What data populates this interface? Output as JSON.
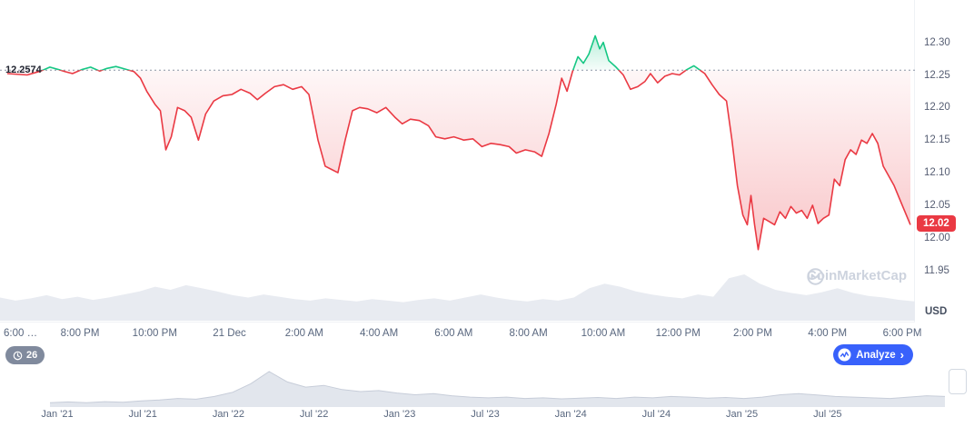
{
  "price_chart": {
    "baseline_label": "12.2574",
    "last_price_label": "12.02",
    "unit": "USD",
    "watermark": "CoinMarketCap"
  },
  "toolbar": {
    "history_count": "26",
    "analyze_label": "Analyze",
    "analyze_chevron": "›"
  },
  "colors": {
    "up": "#16c784",
    "down": "#ea3943",
    "accent_blue": "#3861fb",
    "pill_gray": "#808a9d"
  },
  "chart_data": {
    "type": "line",
    "title": "",
    "unit": "USD",
    "baseline": 12.2574,
    "last_price": 12.02,
    "ylim": [
      11.87,
      12.365
    ],
    "y_ticks": [
      12.3,
      12.25,
      12.2,
      12.15,
      12.1,
      12.05,
      12.0,
      11.95
    ],
    "x_tick_labels": [
      "6:00 …",
      "8:00 PM",
      "10:00 PM",
      "21 Dec",
      "2:00 AM",
      "4:00 AM",
      "6:00 AM",
      "8:00 AM",
      "10:00 AM",
      "12:00 PM",
      "2:00 PM",
      "4:00 PM",
      "6:00 PM"
    ],
    "series": [
      {
        "name": "price",
        "points": [
          [
            0.0,
            12.252
          ],
          [
            0.022,
            12.25
          ],
          [
            0.037,
            12.256
          ],
          [
            0.047,
            12.262
          ],
          [
            0.057,
            12.258
          ],
          [
            0.064,
            12.255
          ],
          [
            0.072,
            12.252
          ],
          [
            0.082,
            12.258
          ],
          [
            0.092,
            12.262
          ],
          [
            0.102,
            12.256
          ],
          [
            0.11,
            12.26
          ],
          [
            0.12,
            12.263
          ],
          [
            0.13,
            12.259
          ],
          [
            0.14,
            12.255
          ],
          [
            0.147,
            12.245
          ],
          [
            0.154,
            12.225
          ],
          [
            0.163,
            12.205
          ],
          [
            0.169,
            12.195
          ],
          [
            0.175,
            12.135
          ],
          [
            0.181,
            12.155
          ],
          [
            0.188,
            12.2
          ],
          [
            0.196,
            12.195
          ],
          [
            0.203,
            12.185
          ],
          [
            0.211,
            12.15
          ],
          [
            0.219,
            12.19
          ],
          [
            0.228,
            12.21
          ],
          [
            0.238,
            12.218
          ],
          [
            0.248,
            12.22
          ],
          [
            0.258,
            12.228
          ],
          [
            0.268,
            12.222
          ],
          [
            0.276,
            12.212
          ],
          [
            0.285,
            12.222
          ],
          [
            0.295,
            12.232
          ],
          [
            0.305,
            12.235
          ],
          [
            0.315,
            12.228
          ],
          [
            0.325,
            12.232
          ],
          [
            0.333,
            12.22
          ],
          [
            0.343,
            12.15
          ],
          [
            0.351,
            12.11
          ],
          [
            0.358,
            12.105
          ],
          [
            0.365,
            12.1
          ],
          [
            0.373,
            12.15
          ],
          [
            0.381,
            12.195
          ],
          [
            0.389,
            12.2
          ],
          [
            0.398,
            12.198
          ],
          [
            0.408,
            12.192
          ],
          [
            0.418,
            12.2
          ],
          [
            0.428,
            12.185
          ],
          [
            0.436,
            12.175
          ],
          [
            0.445,
            12.182
          ],
          [
            0.455,
            12.18
          ],
          [
            0.465,
            12.172
          ],
          [
            0.473,
            12.155
          ],
          [
            0.483,
            12.152
          ],
          [
            0.493,
            12.155
          ],
          [
            0.504,
            12.15
          ],
          [
            0.514,
            12.152
          ],
          [
            0.524,
            12.14
          ],
          [
            0.534,
            12.145
          ],
          [
            0.544,
            12.143
          ],
          [
            0.554,
            12.14
          ],
          [
            0.562,
            12.13
          ],
          [
            0.572,
            12.135
          ],
          [
            0.582,
            12.132
          ],
          [
            0.59,
            12.125
          ],
          [
            0.598,
            12.16
          ],
          [
            0.606,
            12.205
          ],
          [
            0.612,
            12.245
          ],
          [
            0.618,
            12.225
          ],
          [
            0.624,
            12.255
          ],
          [
            0.63,
            12.278
          ],
          [
            0.636,
            12.268
          ],
          [
            0.642,
            12.282
          ],
          [
            0.649,
            12.31
          ],
          [
            0.654,
            12.29
          ],
          [
            0.658,
            12.3
          ],
          [
            0.664,
            12.272
          ],
          [
            0.672,
            12.262
          ],
          [
            0.68,
            12.25
          ],
          [
            0.688,
            12.228
          ],
          [
            0.696,
            12.232
          ],
          [
            0.704,
            12.24
          ],
          [
            0.71,
            12.252
          ],
          [
            0.718,
            12.238
          ],
          [
            0.726,
            12.248
          ],
          [
            0.734,
            12.252
          ],
          [
            0.742,
            12.25
          ],
          [
            0.75,
            12.258
          ],
          [
            0.758,
            12.264
          ],
          [
            0.764,
            12.258
          ],
          [
            0.77,
            12.252
          ],
          [
            0.778,
            12.235
          ],
          [
            0.786,
            12.22
          ],
          [
            0.794,
            12.21
          ],
          [
            0.8,
            12.15
          ],
          [
            0.806,
            12.08
          ],
          [
            0.812,
            12.035
          ],
          [
            0.817,
            12.02
          ],
          [
            0.821,
            12.065
          ],
          [
            0.825,
            12.02
          ],
          [
            0.829,
            11.982
          ],
          [
            0.835,
            12.03
          ],
          [
            0.841,
            12.025
          ],
          [
            0.847,
            12.02
          ],
          [
            0.853,
            12.04
          ],
          [
            0.859,
            12.03
          ],
          [
            0.865,
            12.048
          ],
          [
            0.871,
            12.038
          ],
          [
            0.877,
            12.042
          ],
          [
            0.883,
            12.03
          ],
          [
            0.889,
            12.05
          ],
          [
            0.895,
            12.022
          ],
          [
            0.901,
            12.03
          ],
          [
            0.907,
            12.035
          ],
          [
            0.913,
            12.09
          ],
          [
            0.919,
            12.08
          ],
          [
            0.925,
            12.12
          ],
          [
            0.931,
            12.135
          ],
          [
            0.937,
            12.128
          ],
          [
            0.943,
            12.15
          ],
          [
            0.949,
            12.145
          ],
          [
            0.955,
            12.16
          ],
          [
            0.961,
            12.145
          ],
          [
            0.967,
            12.11
          ],
          [
            0.973,
            12.095
          ],
          [
            0.979,
            12.08
          ],
          [
            0.985,
            12.06
          ],
          [
            0.991,
            12.04
          ],
          [
            0.997,
            12.02
          ]
        ]
      }
    ],
    "volume_norm": [
      0.3,
      0.26,
      0.29,
      0.33,
      0.28,
      0.31,
      0.27,
      0.3,
      0.34,
      0.38,
      0.44,
      0.4,
      0.46,
      0.42,
      0.38,
      0.33,
      0.3,
      0.34,
      0.31,
      0.28,
      0.26,
      0.29,
      0.27,
      0.25,
      0.28,
      0.26,
      0.24,
      0.27,
      0.29,
      0.26,
      0.3,
      0.34,
      0.3,
      0.27,
      0.25,
      0.28,
      0.26,
      0.3,
      0.42,
      0.48,
      0.44,
      0.38,
      0.34,
      0.31,
      0.29,
      0.34,
      0.31,
      0.55,
      0.6,
      0.48,
      0.4,
      0.36,
      0.33,
      0.37,
      0.42,
      0.36,
      0.32,
      0.3,
      0.27,
      0.25
    ],
    "navigator": {
      "labels": [
        "Jan '21",
        "Jul '21",
        "Jan '22",
        "Jul '22",
        "Jan '23",
        "Jul '23",
        "Jan '24",
        "Jul '24",
        "Jan '25",
        "Jul '25"
      ],
      "values_norm": [
        0.1,
        0.12,
        0.1,
        0.13,
        0.11,
        0.15,
        0.18,
        0.22,
        0.2,
        0.28,
        0.4,
        0.65,
        1.0,
        0.7,
        0.55,
        0.6,
        0.48,
        0.42,
        0.45,
        0.38,
        0.33,
        0.36,
        0.3,
        0.26,
        0.24,
        0.26,
        0.22,
        0.24,
        0.21,
        0.23,
        0.25,
        0.22,
        0.26,
        0.24,
        0.28,
        0.26,
        0.23,
        0.25,
        0.22,
        0.26,
        0.33,
        0.36,
        0.32,
        0.28,
        0.26,
        0.24,
        0.22,
        0.26,
        0.3,
        0.28
      ]
    }
  }
}
